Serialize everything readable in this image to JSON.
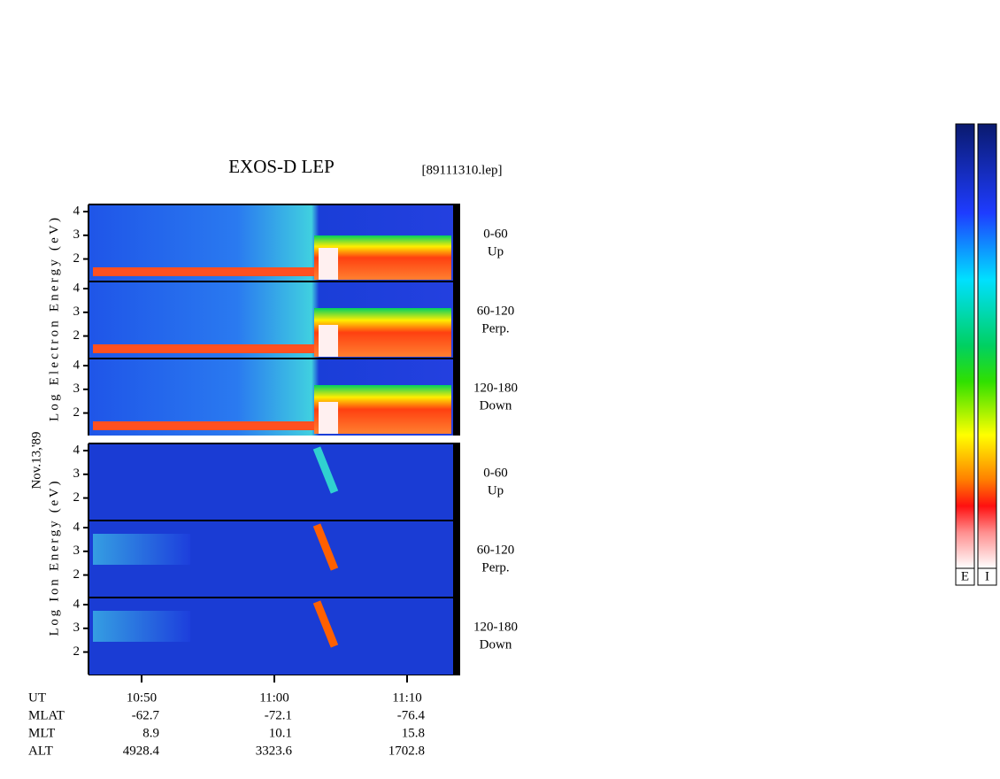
{
  "title": "EXOS-D LEP",
  "file": "[89111310.lep]",
  "date": "Nov.13,'89",
  "ylim": [
    1.05,
    4.3
  ],
  "electron": {
    "label": "Log Electron Energy (eV)",
    "panels": [
      {
        "angle": [
          "0-60",
          "Up"
        ],
        "yticks": [
          2,
          3,
          4
        ]
      },
      {
        "angle": [
          "60-120",
          "Perp."
        ],
        "yticks": [
          2,
          3,
          4
        ]
      },
      {
        "angle": [
          "120-180",
          "Down"
        ],
        "yticks": [
          2,
          3,
          4
        ]
      }
    ]
  },
  "ion": {
    "label": "Log Ion Energy (eV)",
    "panels": [
      {
        "angle": [
          "0-60",
          "Up"
        ],
        "yticks": [
          2,
          3,
          4
        ]
      },
      {
        "angle": [
          "60-120",
          "Perp."
        ],
        "yticks": [
          2,
          3,
          4
        ]
      },
      {
        "angle": [
          "120-180",
          "Down"
        ],
        "yticks": [
          2,
          3,
          4
        ]
      }
    ]
  },
  "time_axis": {
    "label": "UT",
    "ticks": [
      "10:50",
      "11:00",
      "11:10"
    ]
  },
  "ephemeris": [
    {
      "label": "MLAT",
      "values": [
        -62.7,
        -72.1,
        -76.4
      ]
    },
    {
      "label": "MLT",
      "values": [
        8.9,
        10.1,
        15.8
      ]
    },
    {
      "label": "ALT",
      "values": [
        4928.4,
        3323.6,
        1702.8
      ]
    }
  ],
  "colorbars": [
    "E",
    "I"
  ]
}
